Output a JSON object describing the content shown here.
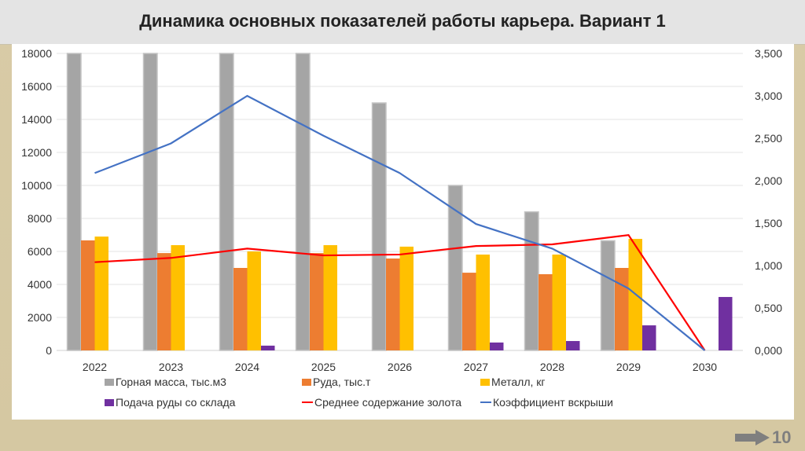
{
  "title": "Динамика основных показателей работы карьера. Вариант 1",
  "page_number": "10",
  "colors": {
    "gray": "#a5a5a5",
    "orange": "#ed7d31",
    "yellow": "#ffc000",
    "purple": "#7030a0",
    "red": "#ff0000",
    "blue": "#4472c4"
  },
  "chart_data": {
    "type": "bar",
    "title": "Динамика основных показателей работы карьера. Вариант 1",
    "categories": [
      "2022",
      "2023",
      "2024",
      "2025",
      "2026",
      "2027",
      "2028",
      "2029",
      "2030"
    ],
    "y_left": {
      "range": [
        0,
        18000
      ],
      "ticks": [
        "0",
        "2000",
        "4000",
        "6000",
        "8000",
        "10000",
        "12000",
        "14000",
        "16000",
        "18000"
      ]
    },
    "y_right": {
      "range": [
        0,
        3.5
      ],
      "ticks": [
        "0,000",
        "0,500",
        "1,000",
        "1,500",
        "2,000",
        "2,500",
        "3,000",
        "3,500"
      ]
    },
    "grid": true,
    "legend_position": "bottom",
    "series": [
      {
        "name": "Горная масса, тыс.м3",
        "type": "bar",
        "axis": "left",
        "color": "#a5a5a5",
        "values": [
          18000,
          18000,
          18000,
          18000,
          15000,
          10000,
          8400,
          6650,
          0
        ]
      },
      {
        "name": "Руда, тыс.т",
        "type": "bar",
        "axis": "left",
        "color": "#ed7d31",
        "values": [
          6670,
          5900,
          5000,
          5900,
          5570,
          4710,
          4620,
          5000,
          0
        ]
      },
      {
        "name": "Металл, кг",
        "type": "bar",
        "axis": "left",
        "color": "#ffc000",
        "values": [
          6900,
          6380,
          6000,
          6380,
          6290,
          5810,
          5810,
          6760,
          0
        ]
      },
      {
        "name": "Подача руды со склада",
        "type": "bar",
        "axis": "left",
        "color": "#7030a0",
        "values": [
          0,
          0,
          290,
          0,
          0,
          480,
          570,
          1520,
          3240
        ]
      },
      {
        "name": "Среднее содержание золота",
        "type": "line",
        "axis": "right",
        "color": "#ff0000",
        "values": [
          1.04,
          1.09,
          1.2,
          1.12,
          1.13,
          1.23,
          1.25,
          1.36,
          0
        ]
      },
      {
        "name": "Коэффициент вскрыши",
        "type": "line",
        "axis": "right",
        "color": "#4472c4",
        "values": [
          2.09,
          2.44,
          3.0,
          2.53,
          2.09,
          1.49,
          1.2,
          0.73,
          0
        ]
      }
    ]
  }
}
